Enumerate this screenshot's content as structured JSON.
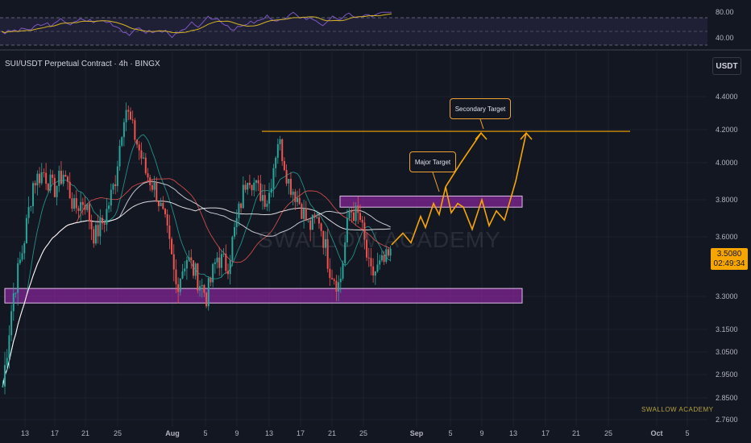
{
  "header": {
    "symbol_label": "SUI/USDT Perpetual Contract · 4h · BINGX",
    "currency_button": "USDT"
  },
  "watermark": "SWALLOW ACADEMY",
  "brand": "SWALLOW ACADEMY",
  "last_price": {
    "value": "3.5080",
    "countdown": "02:49:34"
  },
  "annotations": {
    "major_target": "Major Target",
    "secondary_target": "Secondary Target"
  },
  "colors": {
    "background": "#131722",
    "up": "#26a69a",
    "down": "#ef5350",
    "zone": "#9c27b0",
    "projection": "#f7a600",
    "rsi": "#7e57c2"
  },
  "chart_data": [
    {
      "type": "line",
      "panel": "rsi",
      "y_ticks": [
        "80.00",
        "40.00"
      ],
      "series": [],
      "bands": [
        30,
        70
      ]
    },
    {
      "type": "candlestick",
      "panel": "price",
      "x_tick_labels": [
        "13",
        "17",
        "21",
        "25",
        "Aug",
        "5",
        "9",
        "13",
        "17",
        "21",
        "25",
        "Sep",
        "5",
        "9",
        "13",
        "17",
        "21",
        "25",
        "Oct",
        "5"
      ],
      "y_tick_labels": [
        "4.4000",
        "4.2000",
        "4.0000",
        "3.8000",
        "3.6000",
        "3.3000",
        "3.1500",
        "3.0500",
        "2.9500",
        "2.8500",
        "2.7600"
      ],
      "approx_price_path": [
        2.9,
        3.3,
        3.55,
        3.9,
        3.95,
        3.85,
        3.95,
        3.75,
        3.8,
        3.6,
        3.7,
        3.9,
        4.35,
        4.15,
        3.95,
        3.85,
        3.65,
        3.35,
        3.5,
        3.4,
        3.3,
        3.5,
        3.45,
        3.7,
        3.95,
        3.85,
        3.8,
        4.15,
        3.9,
        3.8,
        3.65,
        3.7,
        3.45,
        3.35,
        3.75,
        3.7,
        3.4,
        3.45,
        3.5
      ],
      "zones": [
        {
          "name": "resistance",
          "from": 3.76,
          "to": 3.82
        },
        {
          "name": "support",
          "from": 3.27,
          "to": 3.34
        }
      ],
      "level_line": 4.19
    }
  ]
}
